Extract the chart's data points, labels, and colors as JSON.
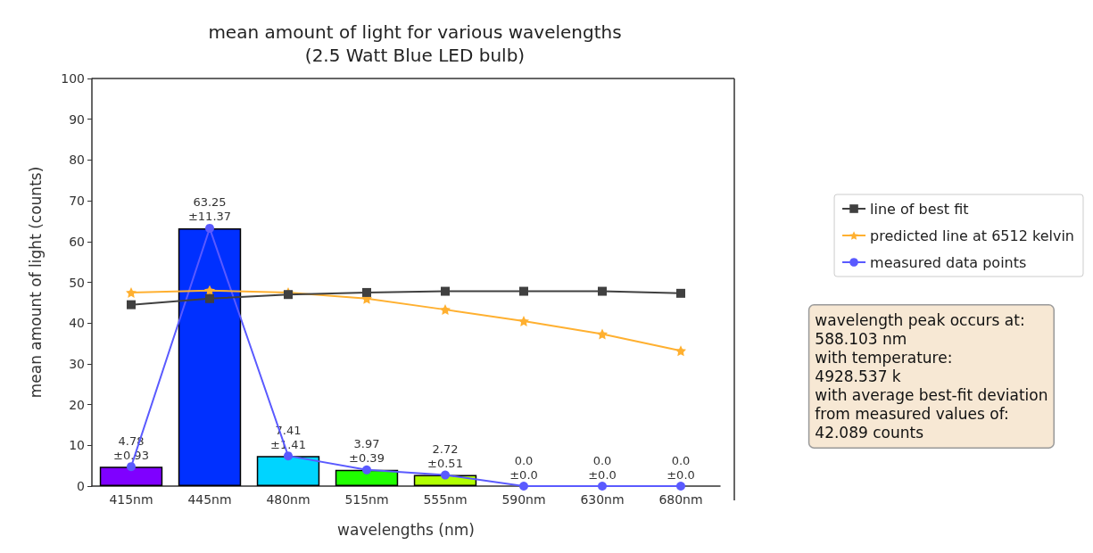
{
  "chart_data": {
    "type": "bar",
    "title": "mean amount of light for various wavelengths\n(2.5 Watt Blue LED bulb)",
    "xlabel": "wavelengths (nm)",
    "ylabel": "mean amount of light (counts)",
    "categories": [
      "415nm",
      "445nm",
      "480nm",
      "515nm",
      "555nm",
      "590nm",
      "630nm",
      "680nm"
    ],
    "ylim": [
      0,
      100
    ],
    "yticks": [
      0,
      10,
      20,
      30,
      40,
      50,
      60,
      70,
      80,
      90,
      100
    ],
    "grid": false,
    "legend": "right",
    "series": [
      {
        "values": [
          4.78,
          63.25,
          7.41,
          3.97,
          2.72,
          0.0,
          0.0,
          0.0
        ],
        "colors": [
          "#7f00ff",
          "#0030ff",
          "#00d4ff",
          "#20ff00",
          "#b0ff00",
          "#ff9000",
          "#ff2000",
          "#e00000"
        ],
        "value_labels": [
          "4.78\n±0.93",
          "63.25\n±11.37",
          "7.41\n±1.41",
          "3.97\n±0.39",
          "2.72\n±0.51",
          "0.0\n±0.0",
          "0.0\n±0.0",
          "0.0\n±0.0"
        ]
      },
      {
        "type": "line",
        "name": "line of best fit",
        "color": "#404040",
        "marker": "square",
        "values": [
          44.5,
          46,
          47,
          47.5,
          47.8,
          47.8,
          47.8,
          47.3
        ]
      },
      {
        "type": "line",
        "name": "predicted line at 6512 kelvin",
        "color": "#ffb030",
        "marker": "star",
        "values": [
          47.5,
          48,
          47.5,
          46,
          43.3,
          40.5,
          37.3,
          33.2
        ]
      },
      {
        "type": "line",
        "name": "measured data points",
        "color": "#5a5aff",
        "marker": "circle",
        "values": [
          4.78,
          63.25,
          7.41,
          3.97,
          2.72,
          0.0,
          0.0,
          0.0
        ]
      }
    ],
    "annotations": [
      "wavelength peak occurs at:\n588.103 nm\nwith temperature:\n4928.537 k\nwith average best-fit deviation\nfrom measured values of:\n42.089 counts"
    ]
  }
}
